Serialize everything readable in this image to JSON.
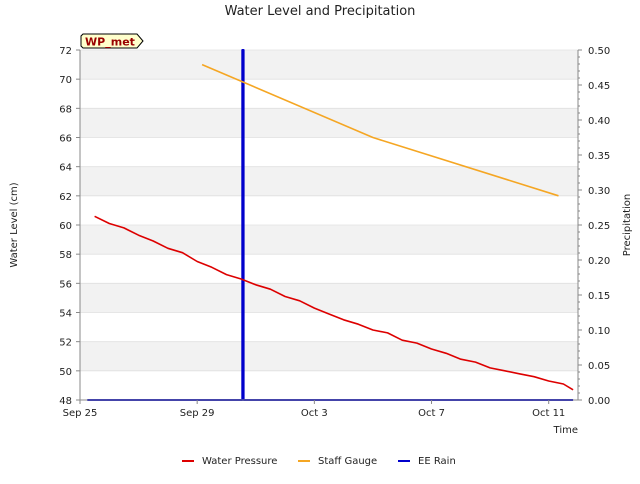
{
  "chart_data": {
    "type": "line",
    "title": "Water Level and Precipitation",
    "xlabel": "Time",
    "ylabel": "Water Level (cm)",
    "y2label": "Precipitation",
    "site_badge": "WP_met",
    "x_axis": {
      "type": "date",
      "min": "2023-09-25",
      "max": "2023-10-12",
      "ticks": [
        "2023-09-25",
        "2023-09-29",
        "2023-10-03",
        "2023-10-07",
        "2023-10-11"
      ],
      "tick_labels": [
        "Sep 25",
        "Sep 29",
        "Oct 3",
        "Oct 7",
        "Oct 11"
      ]
    },
    "ylim": [
      48,
      72
    ],
    "yticks": [
      48,
      50,
      52,
      54,
      56,
      58,
      60,
      62,
      64,
      66,
      68,
      70,
      72
    ],
    "y2lim": [
      0,
      0.5
    ],
    "y2ticks": [
      "0.00",
      "0.05",
      "0.10",
      "0.15",
      "0.20",
      "0.25",
      "0.30",
      "0.35",
      "0.40",
      "0.45",
      "0.50"
    ],
    "grid": "horizontal bands",
    "legend_placement": "bottom",
    "series": [
      {
        "name": "Water Pressure",
        "axis": "left",
        "color": "#dd0000",
        "x": [
          "2023-09-25T12:00",
          "2023-09-26T00:00",
          "2023-09-26T12:00",
          "2023-09-27T00:00",
          "2023-09-27T12:00",
          "2023-09-28T00:00",
          "2023-09-28T12:00",
          "2023-09-29T00:00",
          "2023-09-29T12:00",
          "2023-09-30T00:00",
          "2023-09-30T12:00",
          "2023-10-01T00:00",
          "2023-10-01T12:00",
          "2023-10-02T00:00",
          "2023-10-02T12:00",
          "2023-10-03T00:00",
          "2023-10-03T12:00",
          "2023-10-04T00:00",
          "2023-10-04T12:00",
          "2023-10-05T00:00",
          "2023-10-05T12:00",
          "2023-10-06T00:00",
          "2023-10-06T12:00",
          "2023-10-07T00:00",
          "2023-10-07T12:00",
          "2023-10-08T00:00",
          "2023-10-08T12:00",
          "2023-10-09T00:00",
          "2023-10-09T12:00",
          "2023-10-10T00:00",
          "2023-10-10T12:00",
          "2023-10-11T00:00",
          "2023-10-11T12:00",
          "2023-10-11T20:00"
        ],
        "y": [
          60.6,
          60.1,
          59.8,
          59.3,
          58.9,
          58.4,
          58.1,
          57.5,
          57.1,
          56.6,
          56.3,
          55.9,
          55.6,
          55.1,
          54.8,
          54.3,
          53.9,
          53.5,
          53.2,
          52.8,
          52.6,
          52.1,
          51.9,
          51.5,
          51.2,
          50.8,
          50.6,
          50.2,
          50.0,
          49.8,
          49.6,
          49.3,
          49.1,
          48.7
        ]
      },
      {
        "name": "Staff Gauge",
        "axis": "left",
        "color": "#f5a623",
        "x": [
          "2023-09-29T04:00",
          "2023-10-05T00:00",
          "2023-10-11T08:00"
        ],
        "y": [
          71.0,
          66.0,
          62.0
        ]
      },
      {
        "name": "EE Rain",
        "axis": "right",
        "color": "#0000cc",
        "x": [
          "2023-09-25T06:00",
          "2023-09-30T13:00",
          "2023-09-30T13:00",
          "2023-09-30T14:00",
          "2023-09-30T14:00",
          "2023-10-11T20:00"
        ],
        "y": [
          0,
          0,
          0.5,
          0.5,
          0,
          0
        ]
      }
    ]
  }
}
